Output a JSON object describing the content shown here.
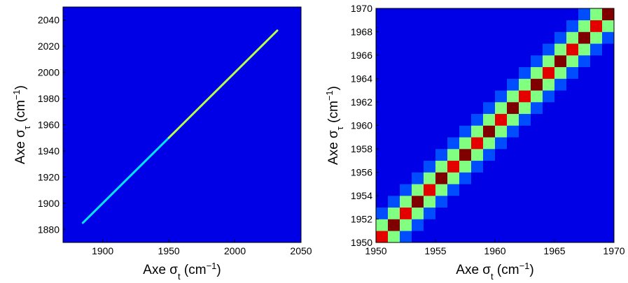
{
  "chart_data": [
    {
      "type": "line",
      "colormap": "jet",
      "background": 0.1,
      "x": [
        1885,
        1950,
        2032
      ],
      "values": [
        1885,
        1950,
        2032
      ],
      "intensity": [
        0.35,
        0.55,
        0.3
      ],
      "xlim": [
        1870,
        2050
      ],
      "ylim": [
        1870,
        2050
      ],
      "xticks": [
        1900,
        1950,
        2000,
        2050
      ],
      "yticks": [
        1880,
        1900,
        1920,
        1940,
        1960,
        1980,
        2000,
        2020,
        2040
      ],
      "xlabel": [
        "Axe σ",
        "t",
        " (cm",
        "−1",
        ")"
      ],
      "ylabel": [
        "Axe σ",
        "τ",
        " (cm",
        "−1",
        ")"
      ]
    },
    {
      "type": "heatmap",
      "colormap": "jet",
      "xbins": [
        1950,
        1951,
        1952,
        1953,
        1954,
        1955,
        1956,
        1957,
        1958,
        1959,
        1960,
        1961,
        1962,
        1963,
        1964,
        1965,
        1966,
        1967,
        1968,
        1969,
        1970
      ],
      "ybins": [
        1950,
        1951,
        1952,
        1953,
        1954,
        1955,
        1956,
        1957,
        1958,
        1959,
        1960,
        1961,
        1962,
        1963,
        1964,
        1965,
        1966,
        1967,
        1968,
        1969,
        1970
      ],
      "z": [
        [
          0.9,
          0.5,
          0.2,
          0.1,
          0.1,
          0.1,
          0.1,
          0.1,
          0.1,
          0.1,
          0.1,
          0.1,
          0.1,
          0.1,
          0.1,
          0.1,
          0.1,
          0.1,
          0.1,
          0.1
        ],
        [
          0.5,
          1,
          0.5,
          0.2,
          0.1,
          0.1,
          0.1,
          0.1,
          0.1,
          0.1,
          0.1,
          0.1,
          0.1,
          0.1,
          0.1,
          0.1,
          0.1,
          0.1,
          0.1,
          0.1
        ],
        [
          0.2,
          0.5,
          0.9,
          0.5,
          0.2,
          0.1,
          0.1,
          0.1,
          0.1,
          0.1,
          0.1,
          0.1,
          0.1,
          0.1,
          0.1,
          0.1,
          0.1,
          0.1,
          0.1,
          0.1
        ],
        [
          0.1,
          0.2,
          0.5,
          1,
          0.5,
          0.2,
          0.1,
          0.1,
          0.1,
          0.1,
          0.1,
          0.1,
          0.1,
          0.1,
          0.1,
          0.1,
          0.1,
          0.1,
          0.1,
          0.1
        ],
        [
          0.1,
          0.1,
          0.2,
          0.5,
          0.9,
          0.5,
          0.2,
          0.1,
          0.1,
          0.1,
          0.1,
          0.1,
          0.1,
          0.1,
          0.1,
          0.1,
          0.1,
          0.1,
          0.1,
          0.1
        ],
        [
          0.1,
          0.1,
          0.1,
          0.2,
          0.5,
          1,
          0.5,
          0.2,
          0.1,
          0.1,
          0.1,
          0.1,
          0.1,
          0.1,
          0.1,
          0.1,
          0.1,
          0.1,
          0.1,
          0.1
        ],
        [
          0.1,
          0.1,
          0.1,
          0.1,
          0.2,
          0.5,
          0.9,
          0.5,
          0.2,
          0.1,
          0.1,
          0.1,
          0.1,
          0.1,
          0.1,
          0.1,
          0.1,
          0.1,
          0.1,
          0.1
        ],
        [
          0.1,
          0.1,
          0.1,
          0.1,
          0.1,
          0.2,
          0.5,
          1,
          0.5,
          0.2,
          0.1,
          0.1,
          0.1,
          0.1,
          0.1,
          0.1,
          0.1,
          0.1,
          0.1,
          0.1
        ],
        [
          0.1,
          0.1,
          0.1,
          0.1,
          0.1,
          0.1,
          0.2,
          0.5,
          0.9,
          0.5,
          0.2,
          0.1,
          0.1,
          0.1,
          0.1,
          0.1,
          0.1,
          0.1,
          0.1,
          0.1
        ],
        [
          0.1,
          0.1,
          0.1,
          0.1,
          0.1,
          0.1,
          0.1,
          0.2,
          0.5,
          1,
          0.5,
          0.2,
          0.1,
          0.1,
          0.1,
          0.1,
          0.1,
          0.1,
          0.1,
          0.1
        ],
        [
          0.1,
          0.1,
          0.1,
          0.1,
          0.1,
          0.1,
          0.1,
          0.1,
          0.2,
          0.5,
          0.9,
          0.5,
          0.2,
          0.1,
          0.1,
          0.1,
          0.1,
          0.1,
          0.1,
          0.1
        ],
        [
          0.1,
          0.1,
          0.1,
          0.1,
          0.1,
          0.1,
          0.1,
          0.1,
          0.1,
          0.2,
          0.5,
          1,
          0.5,
          0.2,
          0.1,
          0.1,
          0.1,
          0.1,
          0.1,
          0.1
        ],
        [
          0.1,
          0.1,
          0.1,
          0.1,
          0.1,
          0.1,
          0.1,
          0.1,
          0.1,
          0.1,
          0.2,
          0.5,
          0.9,
          0.5,
          0.2,
          0.1,
          0.1,
          0.1,
          0.1,
          0.1
        ],
        [
          0.1,
          0.1,
          0.1,
          0.1,
          0.1,
          0.1,
          0.1,
          0.1,
          0.1,
          0.1,
          0.1,
          0.2,
          0.5,
          1,
          0.5,
          0.2,
          0.1,
          0.1,
          0.1,
          0.1
        ],
        [
          0.1,
          0.1,
          0.1,
          0.1,
          0.1,
          0.1,
          0.1,
          0.1,
          0.1,
          0.1,
          0.1,
          0.1,
          0.2,
          0.5,
          0.9,
          0.5,
          0.2,
          0.1,
          0.1,
          0.1
        ],
        [
          0.1,
          0.1,
          0.1,
          0.1,
          0.1,
          0.1,
          0.1,
          0.1,
          0.1,
          0.1,
          0.1,
          0.1,
          0.1,
          0.2,
          0.5,
          1,
          0.5,
          0.2,
          0.1,
          0.1
        ],
        [
          0.1,
          0.1,
          0.1,
          0.1,
          0.1,
          0.1,
          0.1,
          0.1,
          0.1,
          0.1,
          0.1,
          0.1,
          0.1,
          0.1,
          0.2,
          0.5,
          0.9,
          0.5,
          0.2,
          0.1
        ],
        [
          0.1,
          0.1,
          0.1,
          0.1,
          0.1,
          0.1,
          0.1,
          0.1,
          0.1,
          0.1,
          0.1,
          0.1,
          0.1,
          0.1,
          0.1,
          0.2,
          0.5,
          1,
          0.5,
          0.2
        ],
        [
          0.1,
          0.1,
          0.1,
          0.1,
          0.1,
          0.1,
          0.1,
          0.1,
          0.1,
          0.1,
          0.1,
          0.1,
          0.1,
          0.1,
          0.1,
          0.1,
          0.2,
          0.5,
          0.9,
          0.5
        ],
        [
          0.1,
          0.1,
          0.1,
          0.1,
          0.1,
          0.1,
          0.1,
          0.1,
          0.1,
          0.1,
          0.1,
          0.1,
          0.1,
          0.1,
          0.1,
          0.1,
          0.1,
          0.2,
          0.5,
          1
        ]
      ],
      "xlim": [
        1950,
        1970
      ],
      "ylim": [
        1950,
        1970
      ],
      "xticks": [
        1950,
        1955,
        1960,
        1965,
        1970
      ],
      "yticks": [
        1950,
        1952,
        1954,
        1956,
        1958,
        1960,
        1962,
        1964,
        1966,
        1968,
        1970
      ],
      "xlabel": [
        "Axe σ",
        "t",
        " (cm",
        "−1",
        ")"
      ],
      "ylabel": [
        "Axe σ",
        "τ",
        " (cm",
        "−1",
        ")"
      ]
    }
  ]
}
